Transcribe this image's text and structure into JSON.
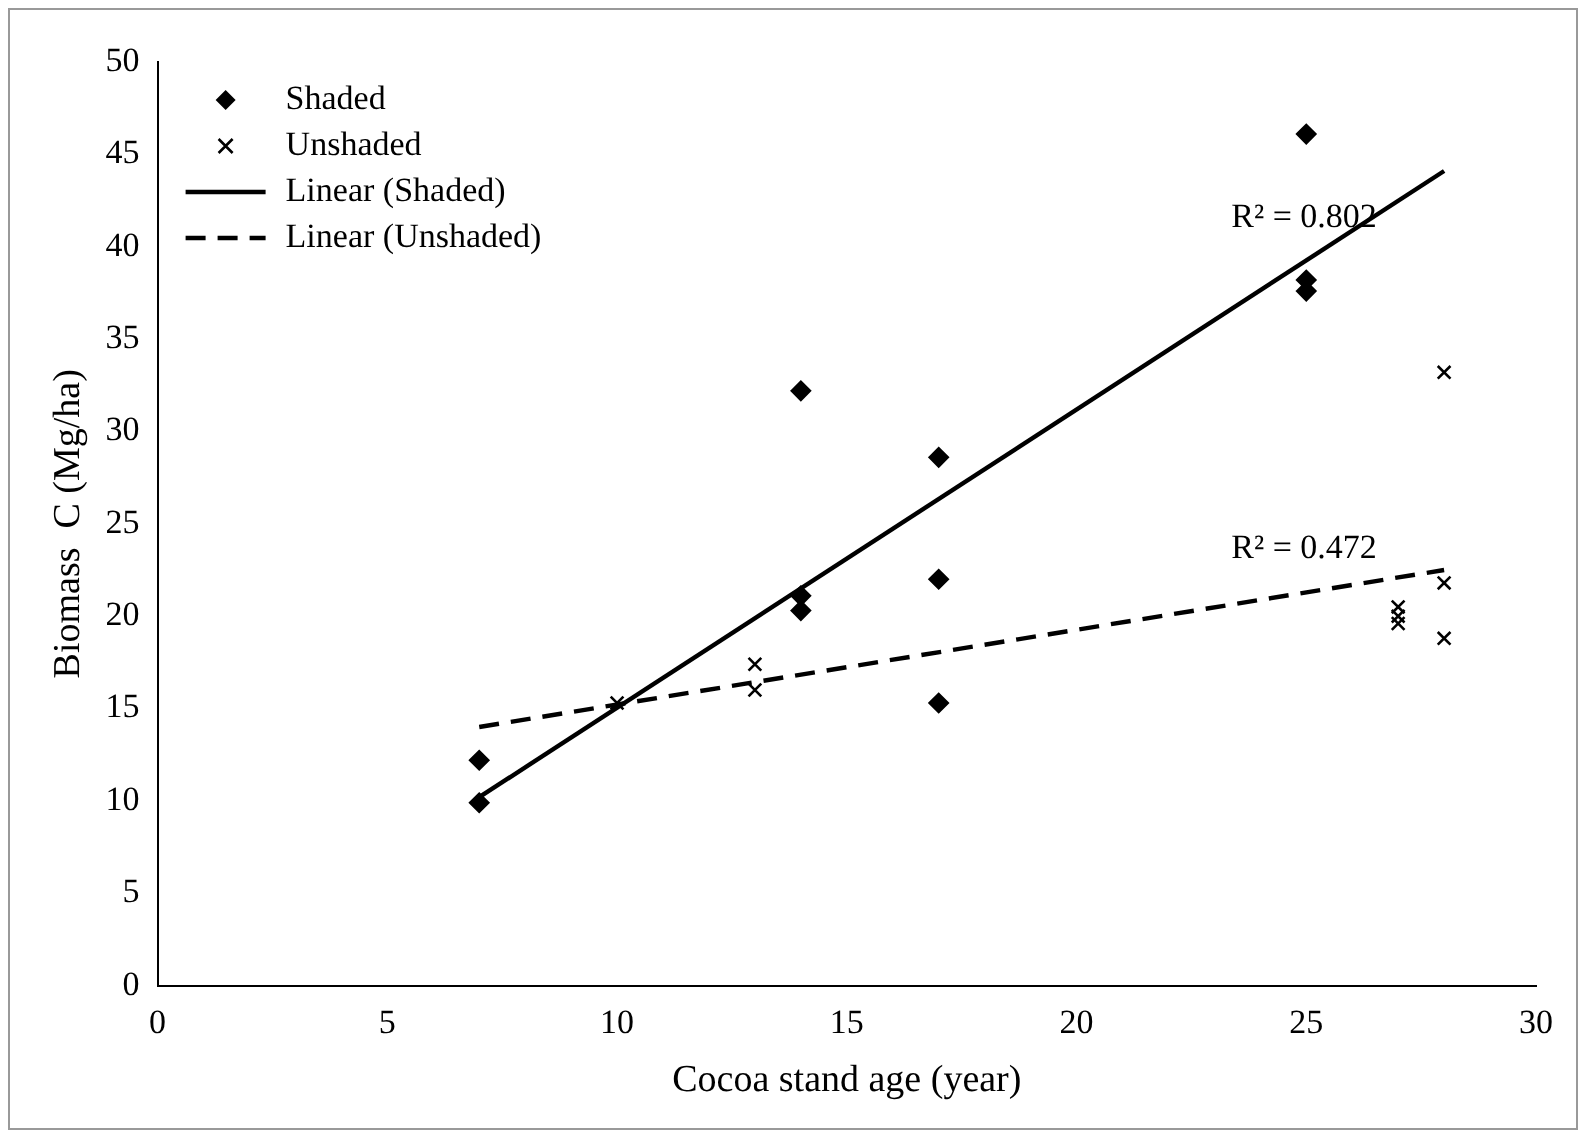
{
  "chart_data": {
    "type": "scatter",
    "xlabel": "Cocoa stand age (year)",
    "ylabel": "Biomass  C (Mg/ha)",
    "xlim": [
      0,
      30
    ],
    "xticks": [
      0,
      5,
      10,
      15,
      20,
      25,
      30
    ],
    "ylim": [
      0,
      50
    ],
    "yticks": [
      0,
      5,
      10,
      15,
      20,
      25,
      30,
      35,
      40,
      45,
      50
    ],
    "grid": false,
    "legend": "top left",
    "series": [
      {
        "name": "Shaded",
        "type": "scatter",
        "marker": "diamond",
        "color": "#000000",
        "x": [
          7,
          7,
          14,
          14,
          14,
          17,
          17,
          17,
          25,
          25,
          25
        ],
        "values": [
          12.2,
          9.9,
          32.2,
          21.1,
          20.3,
          28.6,
          22.0,
          15.3,
          46.1,
          38.2,
          37.6
        ]
      },
      {
        "name": "Unshaded",
        "type": "scatter",
        "marker": "cross",
        "color": "#000000",
        "x": [
          10,
          13,
          13,
          27,
          27,
          27,
          28,
          28,
          28
        ],
        "values": [
          15.3,
          17.4,
          16.0,
          20.5,
          20.0,
          19.6,
          33.2,
          21.8,
          18.8
        ]
      },
      {
        "name": "Linear (Shaded)",
        "type": "line",
        "marker": "none",
        "line_style": "solid",
        "color": "#000000",
        "x": [
          7,
          28
        ],
        "values": [
          10.2,
          44.1
        ]
      },
      {
        "name": "Linear (Unshaded)",
        "type": "line",
        "marker": "none",
        "line_style": "dashed",
        "color": "#000000",
        "x": [
          7,
          28
        ],
        "values": [
          14.0,
          22.5
        ]
      }
    ],
    "annotations": [
      "R² = 0.802",
      "R² = 0.472"
    ]
  }
}
